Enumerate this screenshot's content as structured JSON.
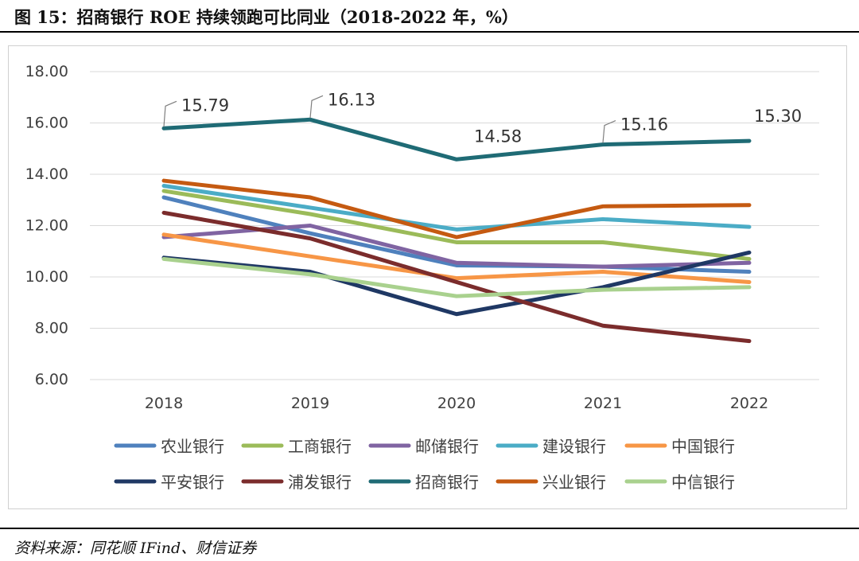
{
  "figure": {
    "title": "图 15：招商银行 ROE 持续领跑可比同业（2018-2022 年，%）",
    "source": "资料来源：同花顺 IFind、财信证券"
  },
  "chart_data": {
    "type": "line",
    "title": "",
    "xlabel": "",
    "ylabel": "",
    "categories": [
      "2018",
      "2019",
      "2020",
      "2021",
      "2022"
    ],
    "ylim": [
      6,
      18
    ],
    "yticks": [
      "6.00",
      "8.00",
      "10.00",
      "12.00",
      "14.00",
      "16.00",
      "18.00"
    ],
    "grid": true,
    "legend_position": "bottom",
    "series": [
      {
        "name": "农业银行",
        "color": "#4F81BD",
        "values": [
          13.1,
          11.7,
          10.45,
          10.4,
          10.2
        ]
      },
      {
        "name": "工商银行",
        "color": "#9BBB59",
        "values": [
          13.35,
          12.45,
          11.35,
          11.35,
          10.7
        ]
      },
      {
        "name": "邮储银行",
        "color": "#8064A2",
        "values": [
          11.55,
          12.0,
          10.55,
          10.4,
          10.55
        ]
      },
      {
        "name": "建设银行",
        "color": "#4BACC6",
        "values": [
          13.55,
          12.7,
          11.85,
          12.25,
          11.95
        ]
      },
      {
        "name": "中国银行",
        "color": "#F79646",
        "values": [
          11.65,
          10.8,
          9.95,
          10.2,
          9.8
        ]
      },
      {
        "name": "平安银行",
        "color": "#1F3864",
        "values": [
          10.75,
          10.2,
          8.55,
          9.6,
          10.95
        ]
      },
      {
        "name": "浦发银行",
        "color": "#7B2C2C",
        "values": [
          12.5,
          11.5,
          9.8,
          8.1,
          7.5
        ]
      },
      {
        "name": "招商银行",
        "color": "#1F6B75",
        "values": [
          15.79,
          16.13,
          14.58,
          15.16,
          15.3
        ],
        "data_labels": [
          "15.79",
          "16.13",
          "14.58",
          "15.16",
          "15.30"
        ]
      },
      {
        "name": "兴业银行",
        "color": "#C55A11",
        "values": [
          13.75,
          13.1,
          11.55,
          12.75,
          12.8
        ]
      },
      {
        "name": "中信银行",
        "color": "#A9D18E",
        "values": [
          10.7,
          10.1,
          9.25,
          9.5,
          9.6
        ]
      }
    ]
  }
}
